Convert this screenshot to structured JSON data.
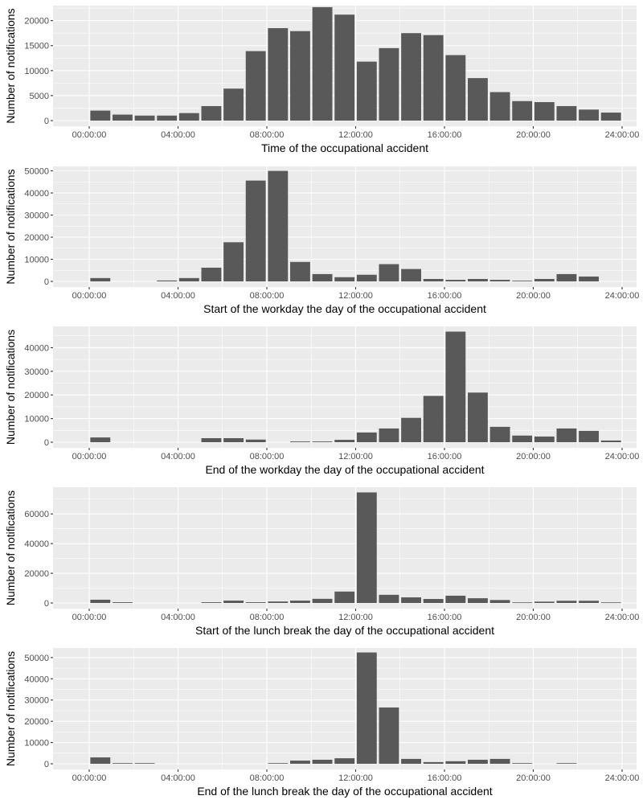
{
  "chart_data": [
    {
      "type": "bar",
      "title": "",
      "xlabel": "Time of the occupational accident",
      "ylabel": "Number of notifications",
      "x_unit": "hour of day (bar centred at hour + 0.5)",
      "xlim_hours": [
        0,
        24
      ],
      "x_ticks": [
        "00:00:00",
        "04:00:00",
        "08:00:00",
        "12:00:00",
        "16:00:00",
        "20:00:00",
        "24:00:00"
      ],
      "y_ticks": [
        0,
        5000,
        10000,
        15000,
        20000
      ],
      "y_tick_labels": [
        "0",
        "5000",
        "10000",
        "15000",
        "20000"
      ],
      "ylim": [
        0,
        23000
      ],
      "grid": true,
      "categories": [
        "0",
        "1",
        "2",
        "3",
        "4",
        "5",
        "6",
        "7",
        "8",
        "9",
        "10",
        "11",
        "12",
        "13",
        "14",
        "15",
        "16",
        "17",
        "18",
        "19",
        "20",
        "21",
        "22",
        "23"
      ],
      "values": [
        2000,
        1200,
        1000,
        1000,
        1500,
        2900,
        6400,
        13900,
        18500,
        17900,
        22700,
        21200,
        11800,
        14500,
        17500,
        17100,
        13100,
        8500,
        5700,
        3900,
        3700,
        2900,
        2200,
        1600
      ]
    },
    {
      "type": "bar",
      "title": "",
      "xlabel": "Start of the workday the day of the occupational accident",
      "ylabel": "Number of notifications",
      "x_unit": "hour of day (bar centred at hour + 0.5)",
      "xlim_hours": [
        0,
        24
      ],
      "x_ticks": [
        "00:00:00",
        "04:00:00",
        "08:00:00",
        "12:00:00",
        "16:00:00",
        "20:00:00",
        "24:00:00"
      ],
      "y_ticks": [
        0,
        10000,
        20000,
        30000,
        40000,
        50000
      ],
      "y_tick_labels": [
        "0",
        "10000",
        "20000",
        "30000",
        "40000",
        "50000"
      ],
      "ylim": [
        0,
        52000
      ],
      "grid": true,
      "categories": [
        "0",
        "1",
        "2",
        "3",
        "4",
        "5",
        "6",
        "7",
        "8",
        "9",
        "10",
        "11",
        "12",
        "13",
        "14",
        "15",
        "16",
        "17",
        "18",
        "19",
        "20",
        "21",
        "22",
        "23"
      ],
      "values": [
        1500,
        0,
        0,
        400,
        1500,
        6200,
        17700,
        45600,
        50000,
        8800,
        3300,
        1900,
        3000,
        7800,
        5600,
        1100,
        700,
        1100,
        700,
        300,
        1100,
        3300,
        2200,
        0
      ]
    },
    {
      "type": "bar",
      "title": "",
      "xlabel": "End of the workday the day of the occupational accident",
      "ylabel": "Number of notifications",
      "x_unit": "hour of day (bar centred at hour + 0.5)",
      "xlim_hours": [
        0,
        24
      ],
      "x_ticks": [
        "00:00:00",
        "04:00:00",
        "08:00:00",
        "12:00:00",
        "16:00:00",
        "20:00:00",
        "24:00:00"
      ],
      "y_ticks": [
        0,
        10000,
        20000,
        30000,
        40000
      ],
      "y_tick_labels": [
        "0",
        "10000",
        "20000",
        "30000",
        "40000"
      ],
      "ylim": [
        0,
        49000
      ],
      "grid": true,
      "categories": [
        "0",
        "1",
        "2",
        "3",
        "4",
        "5",
        "6",
        "7",
        "8",
        "9",
        "10",
        "11",
        "12",
        "13",
        "14",
        "15",
        "16",
        "17",
        "18",
        "19",
        "20",
        "21",
        "22",
        "23"
      ],
      "values": [
        2000,
        0,
        0,
        0,
        0,
        1700,
        1700,
        1100,
        0,
        300,
        300,
        1000,
        4100,
        5800,
        10300,
        19600,
        46800,
        21000,
        6500,
        2800,
        2400,
        5800,
        4800,
        700
      ]
    },
    {
      "type": "bar",
      "title": "",
      "xlabel": "Start of the lunch break the day of the occupational accident",
      "ylabel": "Number of notifications",
      "x_unit": "hour of day (bar centred at hour + 0.5)",
      "xlim_hours": [
        0,
        24
      ],
      "x_ticks": [
        "00:00:00",
        "04:00:00",
        "08:00:00",
        "12:00:00",
        "16:00:00",
        "20:00:00",
        "24:00:00"
      ],
      "y_ticks": [
        0,
        20000,
        40000,
        60000
      ],
      "y_tick_labels": [
        "0",
        "20000",
        "40000",
        "60000"
      ],
      "ylim": [
        0,
        78000
      ],
      "grid": true,
      "categories": [
        "0",
        "1",
        "2",
        "3",
        "4",
        "5",
        "6",
        "7",
        "8",
        "9",
        "10",
        "11",
        "12",
        "13",
        "14",
        "15",
        "16",
        "17",
        "18",
        "19",
        "20",
        "21",
        "22",
        "23"
      ],
      "values": [
        2200,
        500,
        0,
        0,
        0,
        500,
        1600,
        500,
        1000,
        1600,
        2800,
        7700,
        74500,
        5500,
        3800,
        2700,
        4900,
        3200,
        2000,
        400,
        900,
        1500,
        1500,
        400
      ]
    },
    {
      "type": "bar",
      "title": "",
      "xlabel": "End of the lunch break the day of the occupational accident",
      "ylabel": "Number of notifications",
      "x_unit": "hour of day (bar centred at hour + 0.5)",
      "xlim_hours": [
        0,
        24
      ],
      "x_ticks": [
        "00:00:00",
        "04:00:00",
        "08:00:00",
        "12:00:00",
        "16:00:00",
        "20:00:00",
        "24:00:00"
      ],
      "y_ticks": [
        0,
        10000,
        20000,
        30000,
        40000,
        50000
      ],
      "y_tick_labels": [
        "0",
        "10000",
        "20000",
        "30000",
        "40000",
        "50000"
      ],
      "ylim": [
        0,
        54500
      ],
      "grid": true,
      "categories": [
        "0",
        "1",
        "2",
        "3",
        "4",
        "5",
        "6",
        "7",
        "8",
        "9",
        "10",
        "11",
        "12",
        "13",
        "14",
        "15",
        "16",
        "17",
        "18",
        "19",
        "20",
        "21",
        "22",
        "23"
      ],
      "values": [
        3000,
        300,
        300,
        0,
        0,
        0,
        0,
        0,
        300,
        1500,
        1900,
        2600,
        52400,
        26500,
        2300,
        800,
        1200,
        1900,
        2300,
        300,
        0,
        300,
        0,
        0
      ]
    }
  ]
}
